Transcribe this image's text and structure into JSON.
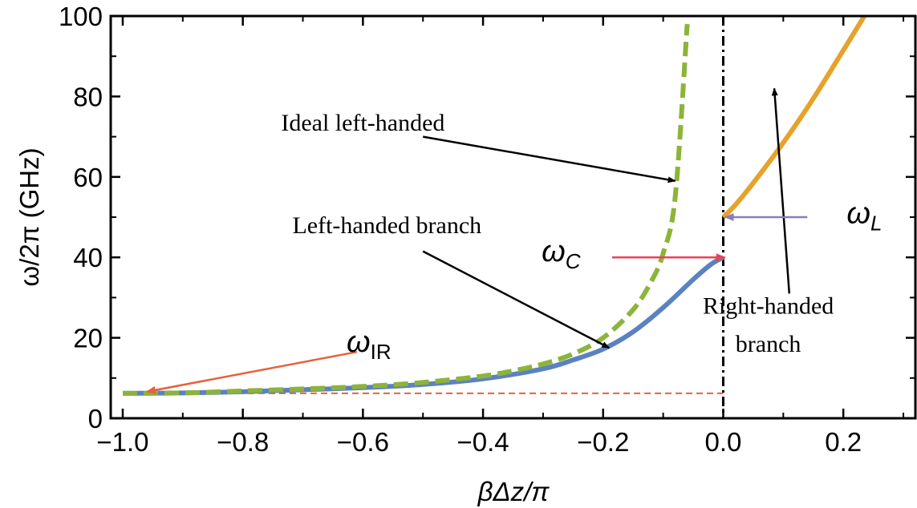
{
  "chart_data": {
    "type": "line",
    "xlabel": "βΔz/π",
    "ylabel": "ω/2π (GHz)",
    "xlim": [
      -1.02,
      0.32
    ],
    "ylim": [
      0,
      100
    ],
    "xticks": [
      -1.0,
      -0.8,
      -0.6,
      -0.4,
      -0.2,
      0.0,
      0.2
    ],
    "xtick_labels": [
      "−1.0",
      "−0.8",
      "−0.6",
      "−0.4",
      "−0.2",
      "0.0",
      "0.2"
    ],
    "yticks": [
      0,
      20,
      40,
      60,
      80,
      100
    ],
    "ytick_labels": [
      "0",
      "20",
      "40",
      "60",
      "80",
      "100"
    ],
    "minor_xtick_step": 0.1,
    "minor_ytick_step": 10,
    "grid": false,
    "series": [
      {
        "key": "ideal",
        "style": "dashed",
        "color": "#8cb43a",
        "x": [
          -1.0,
          -0.9,
          -0.8,
          -0.7,
          -0.6,
          -0.5,
          -0.4,
          -0.35,
          -0.3,
          -0.25,
          -0.2,
          -0.15,
          -0.12,
          -0.1,
          -0.08,
          -0.06
        ],
        "y": [
          6.2,
          6.3,
          6.8,
          7.3,
          7.9,
          8.9,
          10.5,
          11.8,
          13.5,
          16.0,
          20.0,
          27.0,
          34.0,
          41.0,
          55.0,
          98.0
        ]
      },
      {
        "key": "left-handed",
        "style": "solid",
        "color": "#5b82c0",
        "x": [
          -1.0,
          -0.9,
          -0.8,
          -0.7,
          -0.6,
          -0.5,
          -0.4,
          -0.3,
          -0.25,
          -0.2,
          -0.15,
          -0.1,
          -0.05,
          -0.02,
          0.0
        ],
        "y": [
          6.2,
          6.3,
          6.6,
          7.1,
          7.6,
          8.4,
          9.8,
          12.3,
          14.5,
          17.2,
          21.5,
          27.5,
          34.5,
          38.3,
          40.0
        ]
      },
      {
        "key": "right-handed",
        "style": "solid",
        "color": "#e6a22a",
        "x": [
          0.0,
          0.02,
          0.05,
          0.1,
          0.15,
          0.2,
          0.235
        ],
        "y": [
          50.0,
          53.0,
          58.5,
          68.5,
          79.5,
          91.5,
          100.0
        ]
      },
      {
        "key": "omega-ir-level",
        "style": "dashed",
        "color": "#e8603c",
        "x": [
          -1.0,
          0.0
        ],
        "y": [
          6.2,
          6.2
        ]
      }
    ],
    "vline": {
      "x": 0.0,
      "style": "dash-dot",
      "color": "#000000"
    },
    "annotations": [
      {
        "key": "ideal",
        "text": "Ideal left-handed",
        "text_at": [
          -0.6,
          71.5
        ],
        "arrow_to": [
          -0.08,
          59.0
        ],
        "arrow_color": "#000000"
      },
      {
        "key": "lhb",
        "text": "Left-handed branch",
        "text_at": [
          -0.56,
          46.0
        ],
        "arrow_to": [
          -0.19,
          17.5
        ],
        "arrow_color": "#000000"
      },
      {
        "key": "rhb1",
        "text": "Right-handed",
        "text_at": [
          0.075,
          26.0
        ],
        "arrow_color": "#000000"
      },
      {
        "key": "rhb2",
        "text": "branch",
        "text_at": [
          0.075,
          16.5
        ],
        "arrow_from": [
          0.11,
          31.0
        ],
        "arrow_to": [
          0.085,
          82.0
        ]
      },
      {
        "key": "wc",
        "symbol": "ω",
        "sub": "C",
        "text_at": [
          -0.27,
          39.0
        ],
        "arrow_from": [
          -0.185,
          40.0
        ],
        "arrow_to": [
          0.003,
          40.0
        ],
        "arrow_color": "#e8435a"
      },
      {
        "key": "wl",
        "symbol": "ω",
        "sub": "L",
        "text_at": [
          0.235,
          48.5
        ],
        "arrow_from": [
          0.14,
          50.0
        ],
        "arrow_to": [
          0.003,
          50.0
        ],
        "arrow_color": "#8a7bbf"
      },
      {
        "key": "wir",
        "symbol": "ω",
        "sub": "IR",
        "text_at": [
          -0.59,
          16.5
        ],
        "arrow_from": [
          -0.61,
          16.5
        ],
        "arrow_to": [
          -0.96,
          6.6
        ],
        "arrow_color": "#e8603c"
      }
    ]
  }
}
